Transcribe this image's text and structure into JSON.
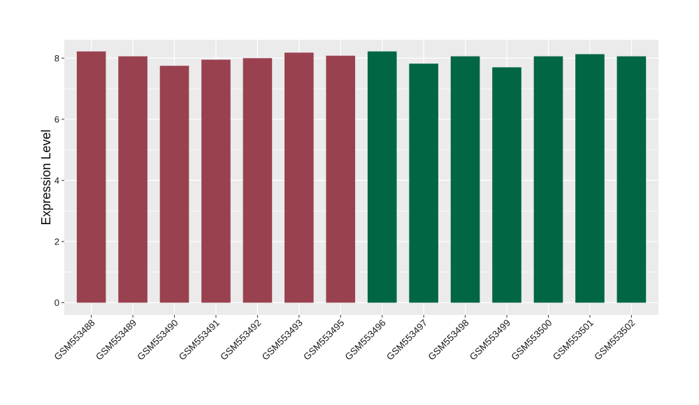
{
  "chart_data": {
    "type": "bar",
    "title": "",
    "xlabel": "",
    "ylabel": "Expression Level",
    "ylim": [
      -0.4,
      8.6
    ],
    "yticks": [
      0,
      2,
      4,
      6,
      8
    ],
    "grid": true,
    "legend": "none",
    "categories": [
      "GSM553488",
      "GSM553489",
      "GSM553490",
      "GSM553491",
      "GSM553492",
      "GSM553493",
      "GSM553495",
      "GSM553496",
      "GSM553497",
      "GSM553498",
      "GSM553499",
      "GSM553500",
      "GSM553501",
      "GSM553502"
    ],
    "values": [
      8.22,
      8.06,
      7.75,
      7.95,
      8.0,
      8.18,
      8.08,
      8.22,
      7.82,
      8.06,
      7.7,
      8.06,
      8.13,
      8.06
    ],
    "group_index": [
      0,
      0,
      0,
      0,
      0,
      0,
      0,
      1,
      1,
      1,
      1,
      1,
      1,
      1
    ],
    "colors": [
      "#9a4150",
      "#006644"
    ],
    "panel_background": "#ebebeb",
    "grid_color": "#ffffff"
  }
}
